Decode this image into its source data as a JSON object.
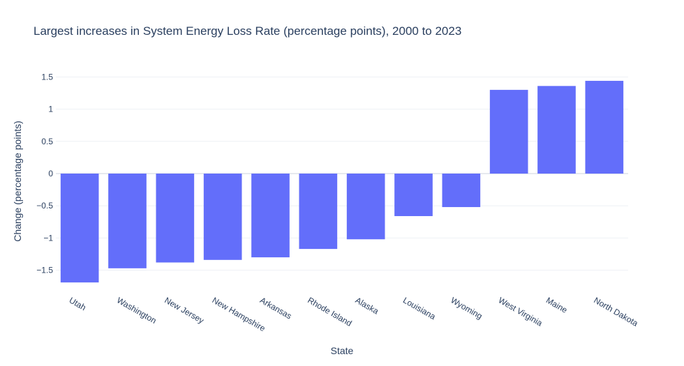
{
  "chart_data": {
    "type": "bar",
    "title": "Largest increases in System Energy Loss Rate (percentage points), 2000 to 2023",
    "xlabel": "State",
    "ylabel": "Change (percentage points)",
    "categories": [
      "Utah",
      "Washington",
      "New Jersey",
      "New Hampshire",
      "Arkansas",
      "Rhode Island",
      "Alaska",
      "Louisiana",
      "Wyoming",
      "West Virginia",
      "Maine",
      "North Dakota"
    ],
    "values": [
      -1.69,
      -1.47,
      -1.38,
      -1.34,
      -1.3,
      -1.17,
      -1.02,
      -0.66,
      -0.52,
      1.3,
      1.36,
      1.44
    ],
    "ylim": [
      -1.7,
      1.7
    ],
    "yticks": [
      -1.5,
      -1,
      -0.5,
      0,
      0.5,
      1,
      1.5
    ],
    "ytick_labels": [
      "−1.5",
      "−1",
      "−0.5",
      "0",
      "0.5",
      "1",
      "1.5"
    ],
    "bar_color": "#636efa",
    "grid": true,
    "legend": "none"
  }
}
